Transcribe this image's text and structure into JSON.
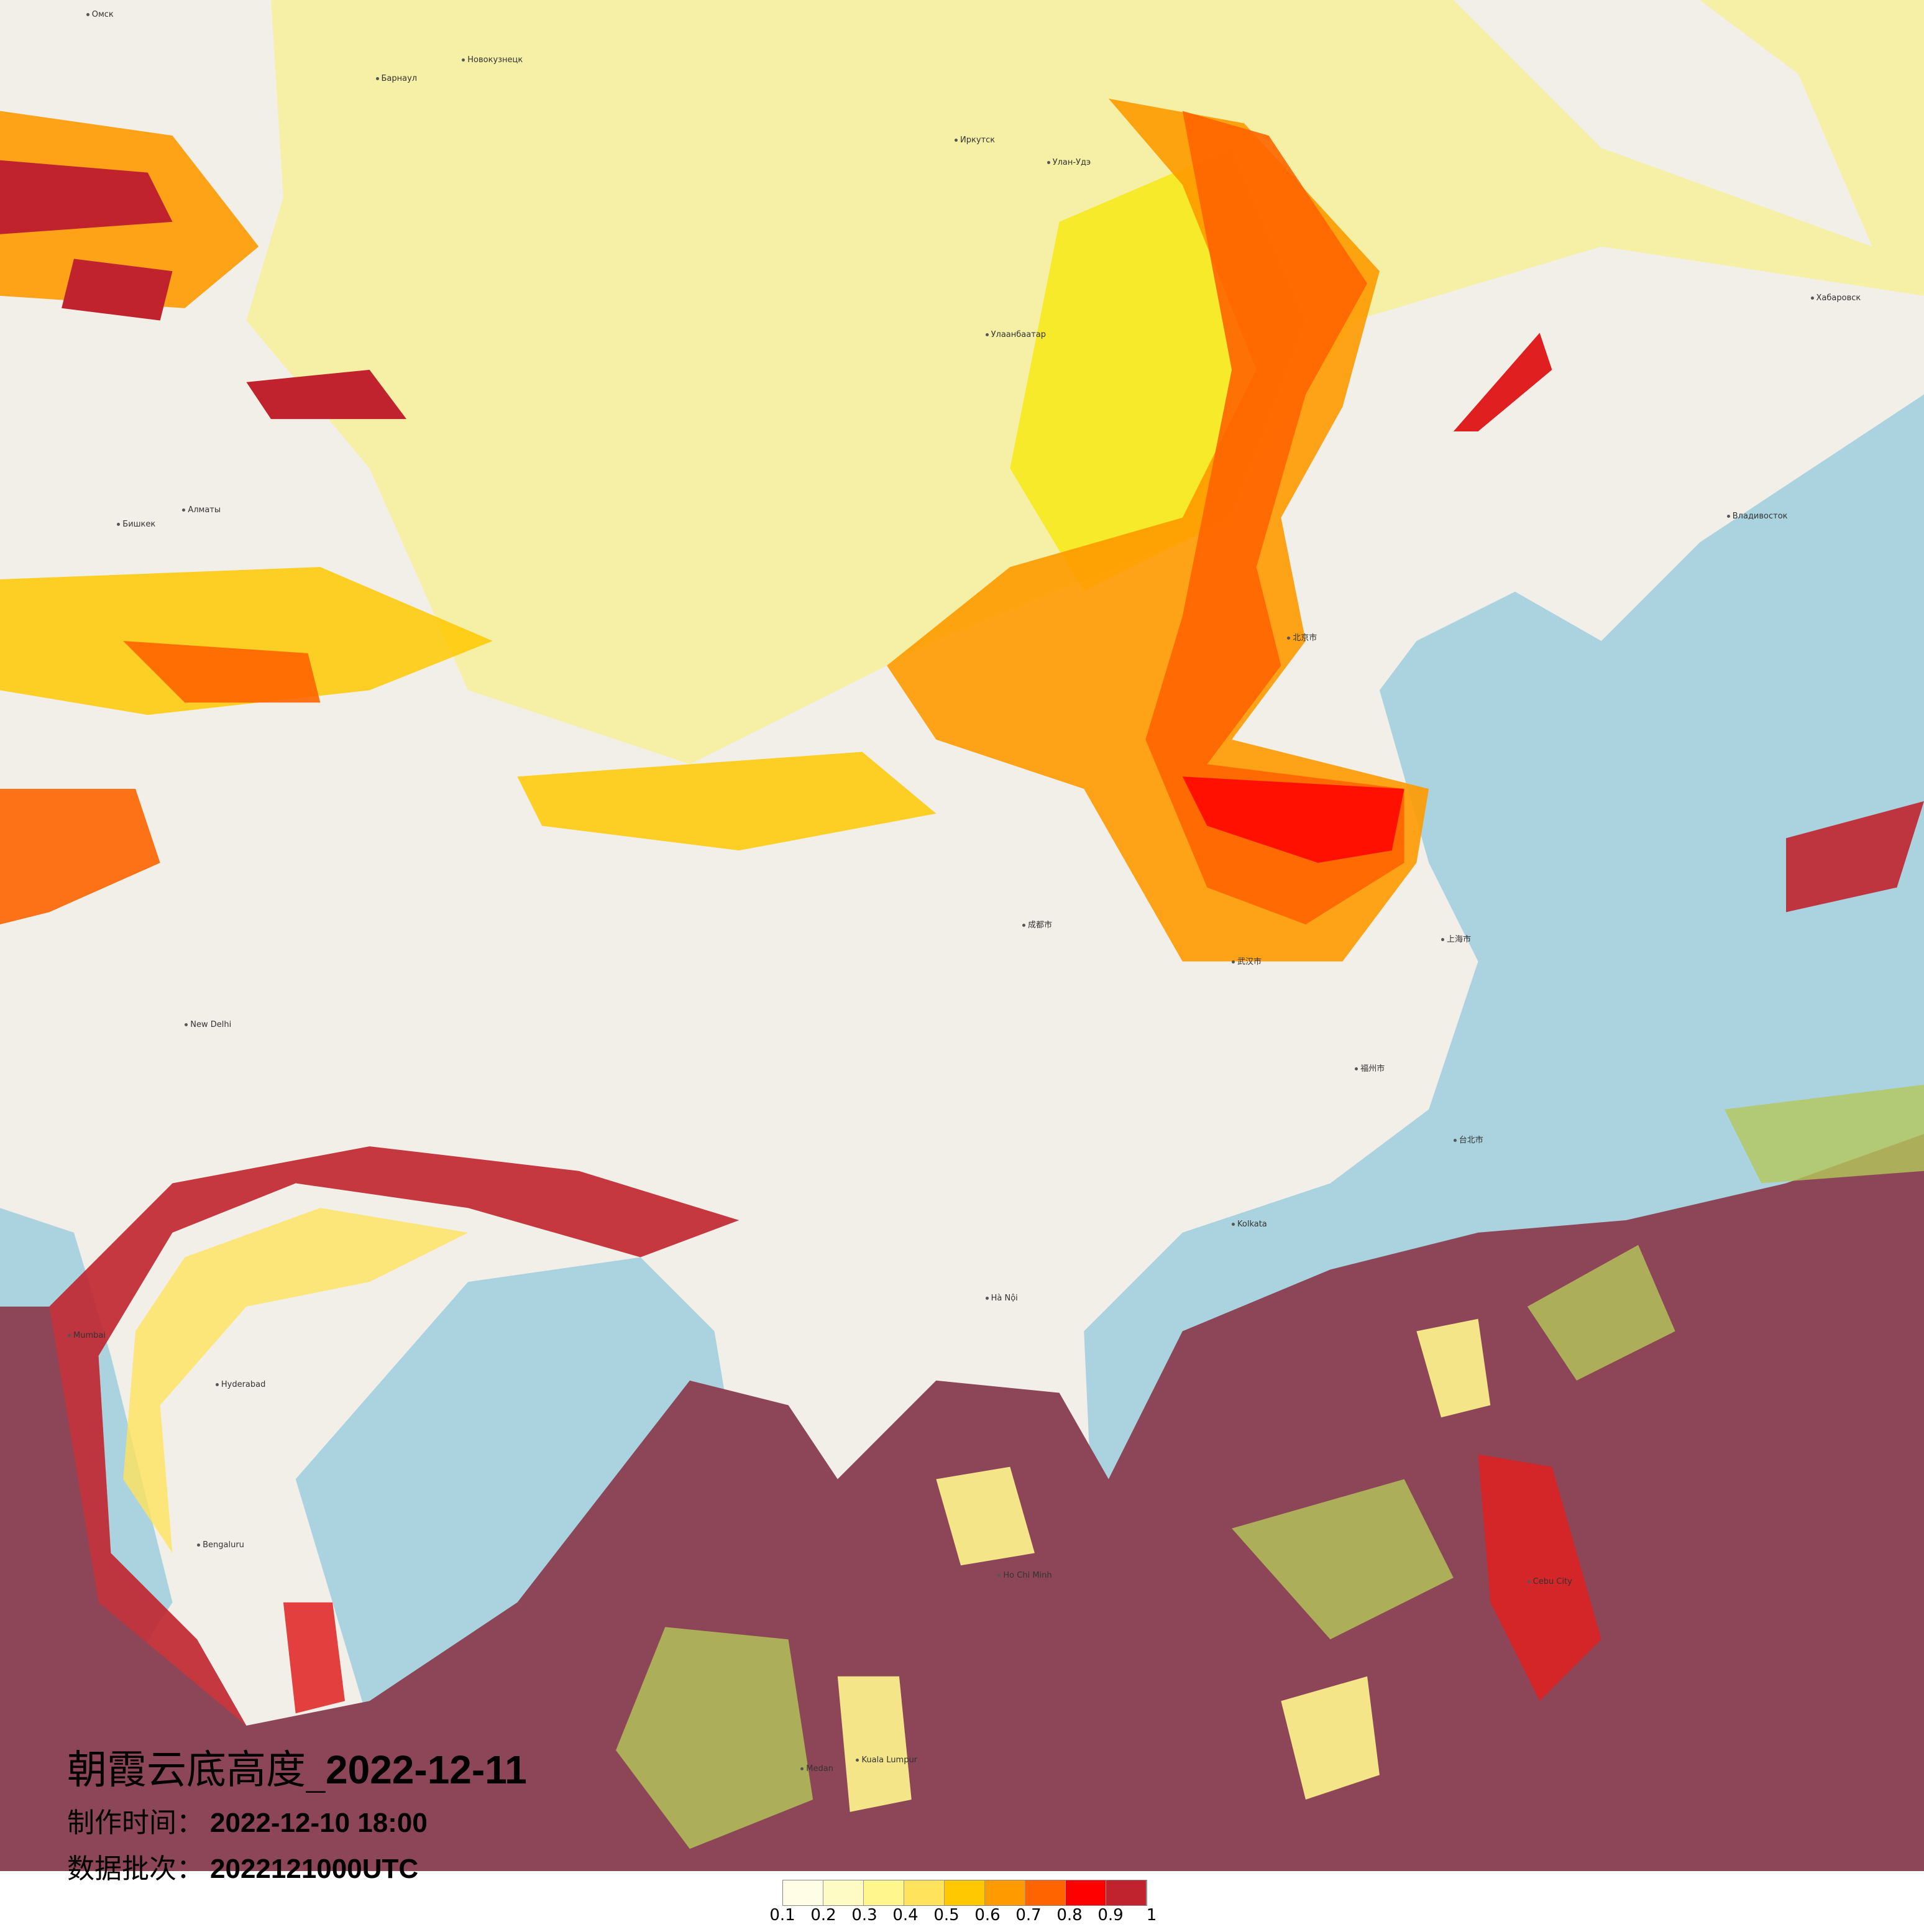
{
  "title": {
    "prefix": "朝霞云底高度_",
    "date": "2022-12-11"
  },
  "production_time": {
    "label": "制作时间：",
    "value": "2022-12-10 18:00"
  },
  "data_batch": {
    "label": "数据批次：",
    "value": "2022121000UTC"
  },
  "legend": {
    "colors": [
      "#fffde6",
      "#fffbc4",
      "#fff78e",
      "#ffe35c",
      "#ffc800",
      "#ff9a00",
      "#ff6400",
      "#ff0000",
      "#c0232e"
    ],
    "ticks": [
      "0.1",
      "0.2",
      "0.3",
      "0.4",
      "0.5",
      "0.6",
      "0.7",
      "0.8",
      "0.9",
      "1"
    ]
  },
  "map": {
    "base_colors": {
      "land": "#f2efe9",
      "water": "#aad3df"
    },
    "cities": [
      "Омск",
      "Новокузнецк",
      "Барнаул",
      "Иркутск",
      "Улан-Удэ",
      "Улаанбаатар",
      "Алматы",
      "Бишкек",
      "New Delhi",
      "Kolkata",
      "Mumbai",
      "Hyderabad",
      "Bengaluru",
      "Hà Nội",
      "Ho Chi Minh",
      "Kuala Lumpur",
      "Medan",
      "Cebu City",
      "Хабаровск",
      "Владивосток",
      "北京市",
      "上海市",
      "台北市",
      "福州市",
      "武汉市",
      "成都市"
    ]
  }
}
